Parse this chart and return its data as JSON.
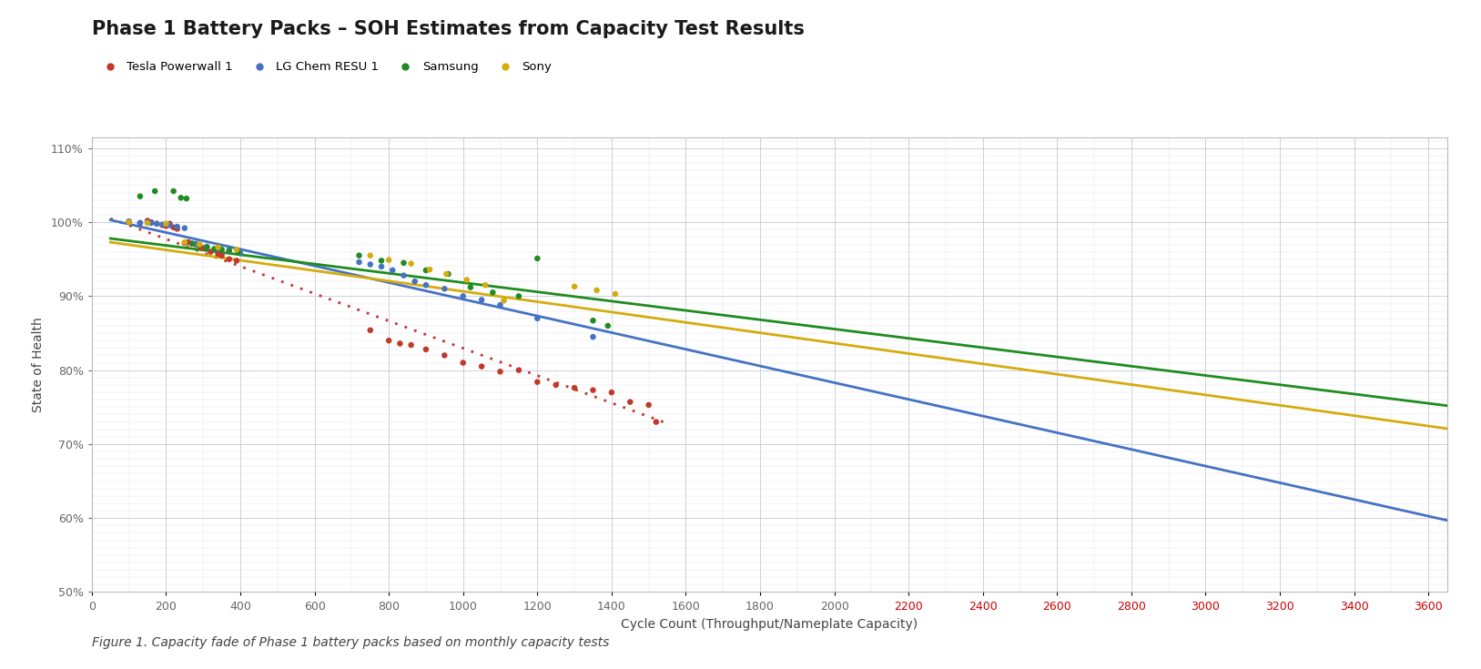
{
  "title": "Phase 1 Battery Packs – SOH Estimates from Capacity Test Results",
  "xlabel": "Cycle Count (Throughput/Nameplate Capacity)",
  "ylabel": "State of Health",
  "caption": "Figure 1. Capacity fade of Phase 1 battery packs based on monthly capacity tests",
  "xlim": [
    0,
    3650
  ],
  "ylim": [
    0.5,
    1.115
  ],
  "yticks": [
    0.5,
    0.6,
    0.7,
    0.8,
    0.9,
    1.0,
    1.1
  ],
  "xticks_black": [
    0,
    200,
    400,
    600,
    800,
    1000,
    1200,
    1400,
    1600,
    1800,
    2000
  ],
  "xticks_red": [
    2200,
    2400,
    2600,
    2800,
    3000,
    3200,
    3400,
    3600
  ],
  "background_color": "#ffffff",
  "plot_bg_color": "#ffffff",
  "series": [
    {
      "name": "Tesla Powerwall 1",
      "color": "#c0392b",
      "line_style": "dotted",
      "line_width": 2.0,
      "marker_size": 22,
      "scatter_x": [
        100,
        130,
        150,
        160,
        175,
        190,
        200,
        210,
        220,
        230,
        250,
        260,
        270,
        280,
        290,
        300,
        320,
        340,
        350,
        370,
        390,
        750,
        800,
        830,
        860,
        900,
        950,
        1000,
        1050,
        1100,
        1150,
        1200,
        1250,
        1300,
        1350,
        1400,
        1450,
        1500,
        1520
      ],
      "scatter_y": [
        1.001,
        0.999,
        1.002,
        1.0,
        0.998,
        0.996,
        0.995,
        0.998,
        0.993,
        0.991,
        0.972,
        0.973,
        0.971,
        0.97,
        0.968,
        0.965,
        0.96,
        0.957,
        0.955,
        0.95,
        0.948,
        0.854,
        0.84,
        0.836,
        0.834,
        0.828,
        0.82,
        0.81,
        0.805,
        0.798,
        0.8,
        0.784,
        0.78,
        0.776,
        0.773,
        0.77,
        0.757,
        0.753,
        0.73
      ],
      "trend_x": [
        50,
        1550
      ],
      "trend_y": [
        1.005,
        0.728
      ]
    },
    {
      "name": "LG Chem RESU 1",
      "color": "#4472c4",
      "line_style": "solid",
      "line_width": 2.0,
      "marker_size": 22,
      "scatter_x": [
        100,
        130,
        150,
        160,
        175,
        190,
        210,
        230,
        250,
        280,
        310,
        340,
        370,
        400,
        720,
        750,
        780,
        810,
        840,
        870,
        900,
        950,
        1000,
        1050,
        1100,
        1200,
        1350
      ],
      "scatter_y": [
        1.001,
        0.999,
        1.0,
        0.999,
        0.998,
        0.997,
        0.996,
        0.994,
        0.992,
        0.971,
        0.967,
        0.964,
        0.961,
        0.958,
        0.946,
        0.943,
        0.94,
        0.935,
        0.928,
        0.92,
        0.915,
        0.91,
        0.9,
        0.895,
        0.888,
        0.87,
        0.845
      ],
      "trend_x": [
        50,
        3650
      ],
      "trend_y": [
        1.003,
        0.597
      ]
    },
    {
      "name": "Samsung",
      "color": "#1e8c1e",
      "line_style": "solid",
      "line_width": 2.0,
      "marker_size": 22,
      "scatter_x": [
        130,
        170,
        220,
        240,
        255,
        270,
        290,
        310,
        330,
        350,
        370,
        395,
        720,
        780,
        840,
        900,
        960,
        1020,
        1080,
        1150,
        1200,
        1350,
        1390
      ],
      "scatter_y": [
        1.035,
        1.042,
        1.042,
        1.033,
        1.032,
        0.971,
        0.969,
        0.966,
        0.964,
        0.963,
        0.962,
        0.959,
        0.955,
        0.948,
        0.945,
        0.935,
        0.93,
        0.912,
        0.905,
        0.9,
        0.951,
        0.867,
        0.86
      ],
      "trend_x": [
        50,
        3650
      ],
      "trend_y": [
        0.978,
        0.752
      ]
    },
    {
      "name": "Sony",
      "color": "#d4ac0d",
      "line_style": "solid",
      "line_width": 2.0,
      "marker_size": 22,
      "scatter_x": [
        100,
        150,
        200,
        250,
        290,
        340,
        390,
        750,
        800,
        860,
        910,
        955,
        1010,
        1060,
        1110,
        1300,
        1360,
        1410
      ],
      "scatter_y": [
        1.0,
        0.999,
        0.998,
        0.973,
        0.97,
        0.966,
        0.963,
        0.955,
        0.949,
        0.944,
        0.936,
        0.93,
        0.922,
        0.915,
        0.894,
        0.913,
        0.908,
        0.903
      ],
      "trend_x": [
        50,
        3650
      ],
      "trend_y": [
        0.973,
        0.721
      ]
    }
  ],
  "title_fontsize": 15,
  "axis_label_fontsize": 10,
  "tick_fontsize": 9,
  "legend_fontsize": 9.5,
  "caption_fontsize": 10
}
